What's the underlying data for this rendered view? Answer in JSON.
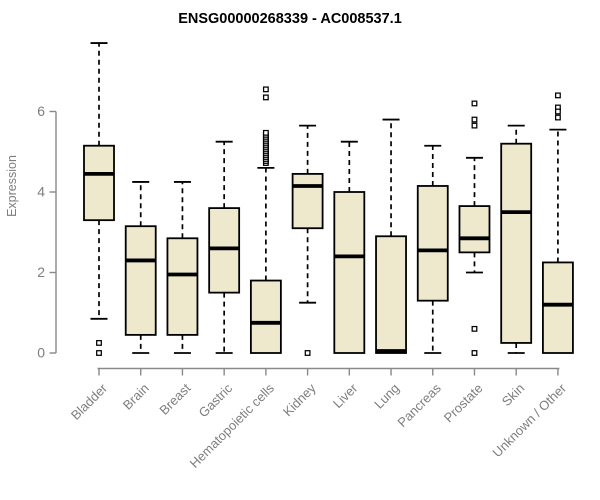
{
  "title": "ENSG00000268339 - AC008537.1",
  "chart_data": {
    "type": "box",
    "title": "ENSG00000268339 - AC008537.1",
    "xlabel": "",
    "ylabel": "Expression",
    "yticks": [
      0,
      2,
      4,
      6
    ],
    "ylim": [
      0,
      6
    ],
    "grid": false,
    "legend": false,
    "categories": [
      "Bladder",
      "Brain",
      "Breast",
      "Gastric",
      "Hematopoietic cells",
      "Kidney",
      "Liver",
      "Lung",
      "Pancreas",
      "Prostate",
      "Skin",
      "Unknown / Other"
    ],
    "boxes": [
      {
        "category": "Bladder",
        "whisker_low": 0.85,
        "q1": 3.3,
        "median": 4.45,
        "q3": 5.15,
        "whisker_high": 7.7,
        "outliers": [
          0.25,
          0.0
        ]
      },
      {
        "category": "Brain",
        "whisker_low": 0.0,
        "q1": 0.45,
        "median": 2.3,
        "q3": 3.15,
        "whisker_high": 4.25,
        "outliers": []
      },
      {
        "category": "Breast",
        "whisker_low": 0.0,
        "q1": 0.45,
        "median": 1.95,
        "q3": 2.85,
        "whisker_high": 4.25,
        "outliers": []
      },
      {
        "category": "Gastric",
        "whisker_low": 0.0,
        "q1": 1.5,
        "median": 2.6,
        "q3": 3.6,
        "whisker_high": 5.25,
        "outliers": []
      },
      {
        "category": "Hematopoietic cells",
        "whisker_low": 0.0,
        "q1": 0.0,
        "median": 0.75,
        "q3": 1.8,
        "whisker_high": 4.6,
        "outliers": [
          4.72,
          4.77,
          4.82,
          4.87,
          4.92,
          4.97,
          5.02,
          5.07,
          5.12,
          5.17,
          5.22,
          5.27,
          5.32,
          5.37,
          5.42,
          5.47,
          6.35,
          6.55
        ]
      },
      {
        "category": "Kidney",
        "whisker_low": 1.25,
        "q1": 3.1,
        "median": 4.15,
        "q3": 4.45,
        "whisker_high": 5.65,
        "outliers": [
          0.0
        ]
      },
      {
        "category": "Liver",
        "whisker_low": 0.0,
        "q1": 0.0,
        "median": 2.4,
        "q3": 4.0,
        "whisker_high": 5.25,
        "outliers": []
      },
      {
        "category": "Lung",
        "whisker_low": 0.0,
        "q1": 0.0,
        "median": 0.05,
        "q3": 2.9,
        "whisker_high": 5.8,
        "outliers": []
      },
      {
        "category": "Pancreas",
        "whisker_low": 0.0,
        "q1": 1.3,
        "median": 2.55,
        "q3": 4.15,
        "whisker_high": 5.15,
        "outliers": []
      },
      {
        "category": "Prostate",
        "whisker_low": 2.0,
        "q1": 2.5,
        "median": 2.85,
        "q3": 3.65,
        "whisker_high": 4.85,
        "outliers": [
          6.2,
          5.8,
          5.65,
          0.6,
          0.0
        ]
      },
      {
        "category": "Skin",
        "whisker_low": 0.0,
        "q1": 0.25,
        "median": 3.5,
        "q3": 5.2,
        "whisker_high": 5.65,
        "outliers": []
      },
      {
        "category": "Unknown / Other",
        "whisker_low": 0.0,
        "q1": 0.0,
        "median": 1.2,
        "q3": 2.25,
        "whisker_high": 5.55,
        "outliers": [
          6.4,
          6.1,
          6.0,
          5.85
        ]
      }
    ],
    "colors": {
      "background": "#FFFFFF",
      "box_fill": "#EEE8CD",
      "box_stroke": "#000000",
      "median": "#000000",
      "axis": "#898989",
      "tick_label": "#7E7E7E",
      "title": "#000000"
    }
  }
}
